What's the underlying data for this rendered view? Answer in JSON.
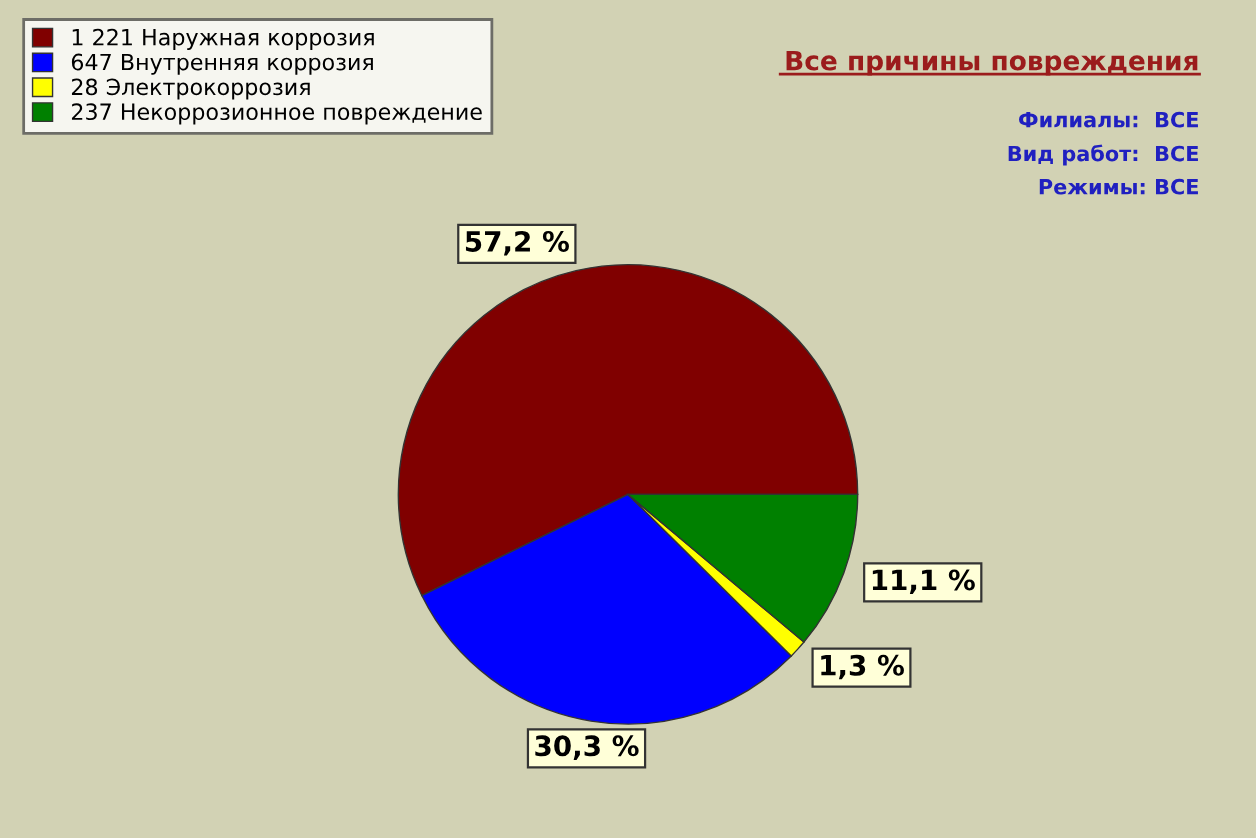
{
  "chart_data": {
    "type": "pie",
    "title": "Все причины повреждения",
    "categories": [
      "1 221 Наружная коррозия",
      "647 Внутренняя коррозия",
      "28 Электрокоррозия",
      "237 Некоррозионное повреждение"
    ],
    "values": [
      57.2,
      30.3,
      1.3,
      11.1
    ],
    "colors": [
      "#800000",
      "#0000ff",
      "#ffff00",
      "#008000"
    ],
    "value_labels": [
      "57,2 %",
      "30,3 %",
      "1,3 %",
      "11,1 %"
    ],
    "annotations": [
      "Филиалы:  ВСЕ",
      "Вид работ:  ВСЕ",
      "Режимы: ВСЕ"
    ],
    "legend": "top left"
  }
}
